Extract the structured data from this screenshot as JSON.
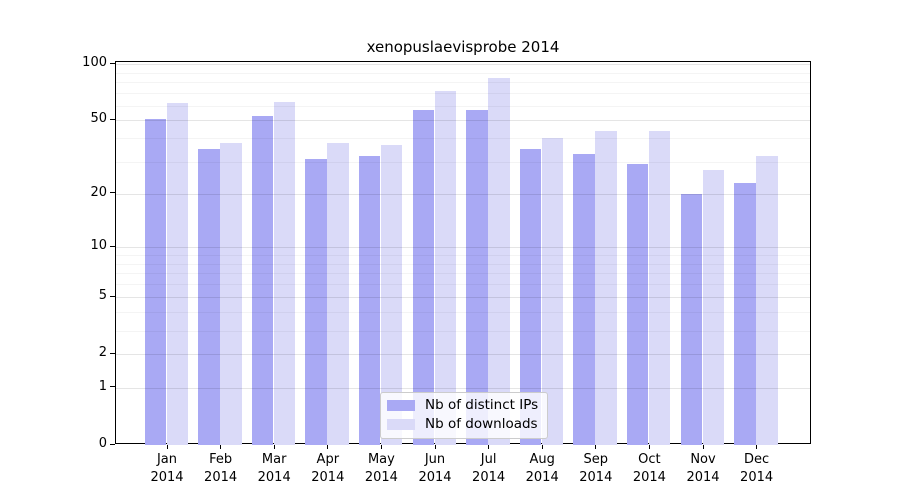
{
  "chart_data": {
    "type": "bar",
    "title": "xenopuslaevisprobe 2014",
    "categories": [
      "Jan 2014",
      "Feb 2014",
      "Mar 2014",
      "Apr 2014",
      "May 2014",
      "Jun 2014",
      "Jul 2014",
      "Aug 2014",
      "Sep 2014",
      "Oct 2014",
      "Nov 2014",
      "Dec 2014"
    ],
    "series": [
      {
        "name": "Nb of distinct IPs",
        "color": "#a9a9f4",
        "values": [
          51,
          35,
          53,
          31,
          32,
          57,
          57,
          35,
          33,
          29,
          20,
          23
        ]
      },
      {
        "name": "Nb of downloads",
        "color": "#dadaf8",
        "values": [
          62,
          38,
          63,
          38,
          37,
          72,
          84,
          40,
          44,
          44,
          27,
          32
        ]
      }
    ],
    "yscale": "log1p",
    "ylim": [
      0,
      103
    ],
    "yticks": [
      100,
      50,
      20,
      10,
      5,
      2,
      1,
      0
    ],
    "minor_gridticks": [
      3,
      4,
      6,
      7,
      8,
      9,
      30,
      40,
      60,
      70,
      80,
      90
    ],
    "grid": true,
    "legend_position": "lower center",
    "xlabel": "",
    "ylabel": ""
  },
  "colors": {
    "background": "#ffffff",
    "axis": "#000000",
    "text": "#000000",
    "grid_major": "rgba(0,0,0,0.10)",
    "grid_minor": "rgba(0,0,0,0.045)",
    "legend_background": "rgba(255,255,255,0.8)",
    "legend_border": "#cccccc"
  }
}
